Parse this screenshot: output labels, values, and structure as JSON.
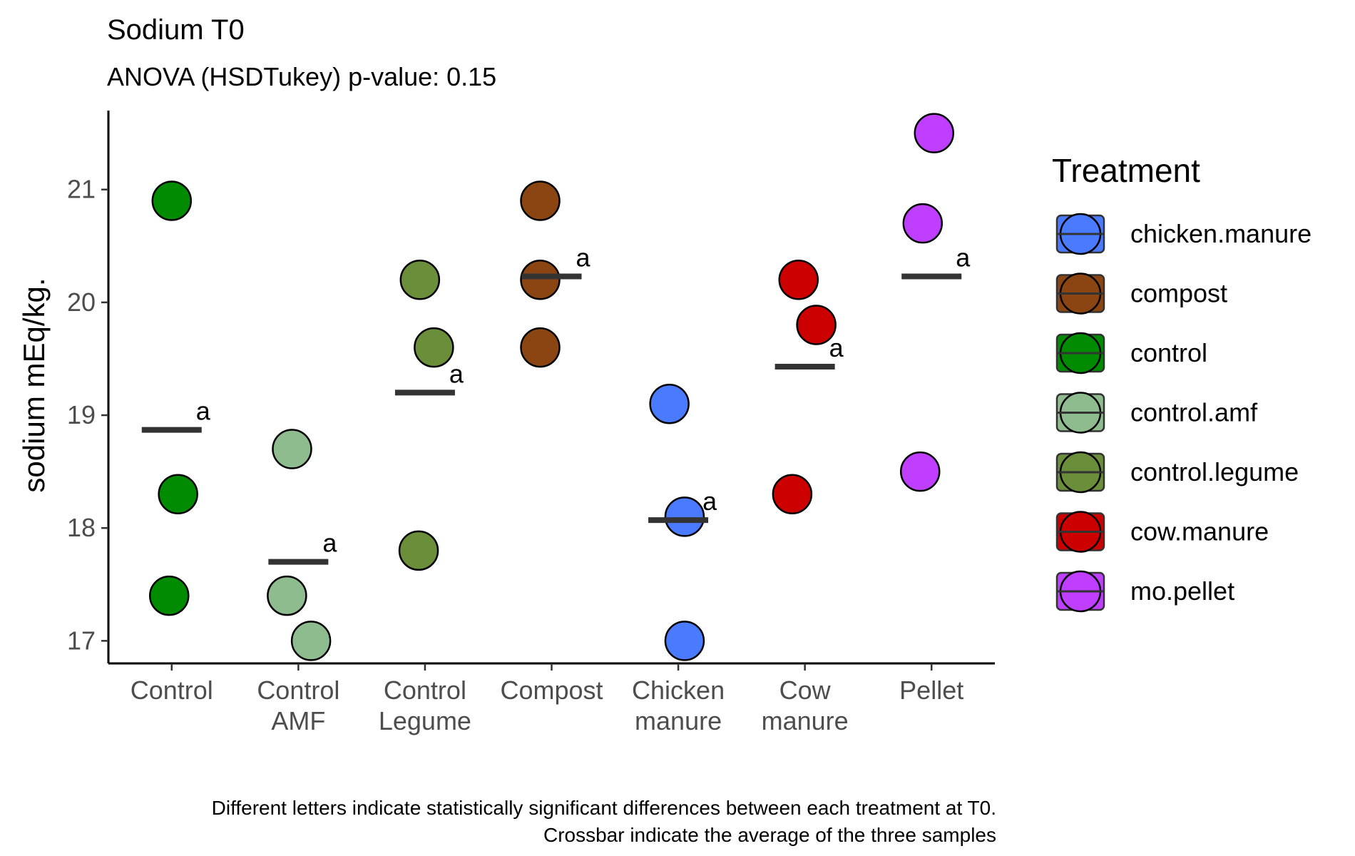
{
  "chart_data": {
    "type": "scatter",
    "title": "Sodium T0",
    "subtitle": "ANOVA (HSDTukey) p-value: 0.15",
    "ylabel": "sodium mEq/kg.",
    "xlabel": "",
    "ylim": [
      16.8,
      21.7
    ],
    "yticks": [
      17,
      18,
      19,
      20,
      21
    ],
    "grid": false,
    "categories": [
      [
        "Control"
      ],
      [
        "Control",
        "AMF"
      ],
      [
        "Control",
        "Legume"
      ],
      [
        "Compost"
      ],
      [
        "Chicken",
        "manure"
      ],
      [
        "Cow",
        "manure"
      ],
      [
        "Pellet"
      ]
    ],
    "groups": [
      {
        "treatment": "control",
        "points": [
          20.9,
          18.3,
          17.4
        ],
        "mean": 18.87,
        "letter": "a"
      },
      {
        "treatment": "control.amf",
        "points": [
          18.7,
          17.4,
          17.0
        ],
        "mean": 17.7,
        "letter": "a"
      },
      {
        "treatment": "control.legume",
        "points": [
          20.2,
          19.6,
          17.8
        ],
        "mean": 19.2,
        "letter": "a"
      },
      {
        "treatment": "compost",
        "points": [
          20.9,
          20.2,
          19.6
        ],
        "mean": 20.23,
        "letter": "a"
      },
      {
        "treatment": "chicken.manure",
        "points": [
          19.1,
          18.1,
          17.0
        ],
        "mean": 18.07,
        "letter": "a"
      },
      {
        "treatment": "cow.manure",
        "points": [
          20.2,
          19.8,
          18.3
        ],
        "mean": 19.43,
        "letter": "a"
      },
      {
        "treatment": "mo.pellet",
        "points": [
          21.5,
          20.7,
          18.5
        ],
        "mean": 20.23,
        "letter": "a"
      }
    ],
    "jitter": [
      [
        0,
        0.05,
        -0.02
      ],
      [
        -0.05,
        -0.09,
        0.1
      ],
      [
        -0.04,
        0.07,
        -0.05
      ],
      [
        -0.09,
        -0.09,
        -0.09
      ],
      [
        -0.07,
        0.05,
        0.05
      ],
      [
        -0.05,
        0.09,
        -0.1
      ],
      [
        0.02,
        -0.07,
        -0.09
      ]
    ],
    "legend": {
      "title": "Treatment",
      "position": "right",
      "entries": [
        {
          "label": "chicken.manure",
          "color": "#4a7bff"
        },
        {
          "label": "compost",
          "color": "#8b4513"
        },
        {
          "label": "control",
          "color": "#008b00"
        },
        {
          "label": "control.amf",
          "color": "#8fbc8f"
        },
        {
          "label": "control.legume",
          "color": "#6b8e3a"
        },
        {
          "label": "cow.manure",
          "color": "#cd0000"
        },
        {
          "label": "mo.pellet",
          "color": "#bf3eff"
        }
      ]
    },
    "caption": [
      "Different letters indicate statistically significant differences between each treatment at T0.",
      "Crossbar indicate the average of the three samples"
    ]
  }
}
